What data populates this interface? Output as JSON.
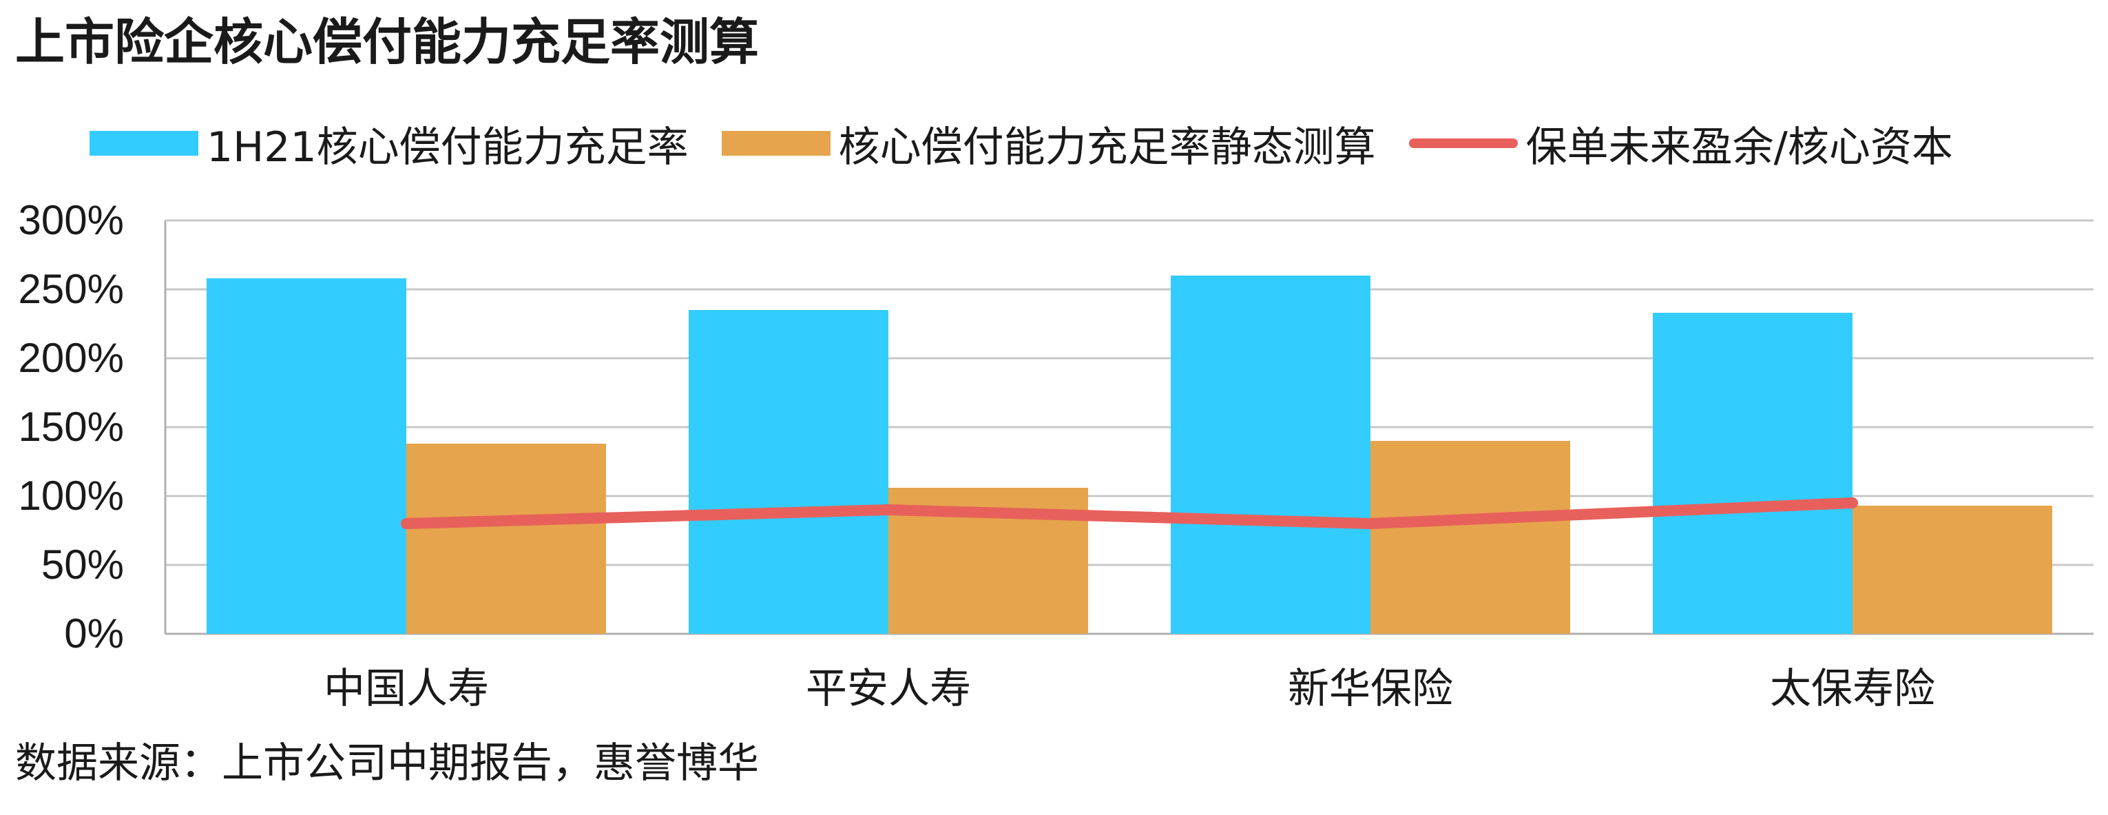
{
  "title": "上市险企核心偿付能力充足率测算",
  "source": "数据来源：上市公司中期报告，惠誉博华",
  "colors": {
    "bar1": "#33CCFF",
    "bar2": "#E6A44C",
    "line": "#E8605C",
    "grid": "#c8c8c8",
    "axis": "#b0b0b0"
  },
  "legend": [
    {
      "label": "1H21核心偿付能力充足率",
      "kind": "bar",
      "color": "#33CCFF"
    },
    {
      "label": "核心偿付能力充足率静态测算",
      "kind": "bar",
      "color": "#E6A44C"
    },
    {
      "label": "保单未来盈余/核心资本",
      "kind": "line",
      "color": "#E8605C"
    }
  ],
  "chart_data": {
    "type": "bar",
    "title": "上市险企核心偿付能力充足率测算",
    "categories": [
      "中国人寿",
      "平安人寿",
      "新华保险",
      "太保寿险"
    ],
    "series": [
      {
        "name": "1H21核心偿付能力充足率",
        "type": "bar",
        "values": [
          258,
          235,
          260,
          233
        ]
      },
      {
        "name": "核心偿付能力充足率静态测算",
        "type": "bar",
        "values": [
          138,
          106,
          140,
          93
        ]
      },
      {
        "name": "保单未来盈余/核心资本",
        "type": "line",
        "values": [
          80,
          90,
          80,
          95
        ]
      }
    ],
    "y_ticks": [
      "0%",
      "50%",
      "100%",
      "150%",
      "200%",
      "250%",
      "300%"
    ],
    "ylim": [
      0,
      300
    ],
    "grid": true,
    "legend_position": "top"
  }
}
